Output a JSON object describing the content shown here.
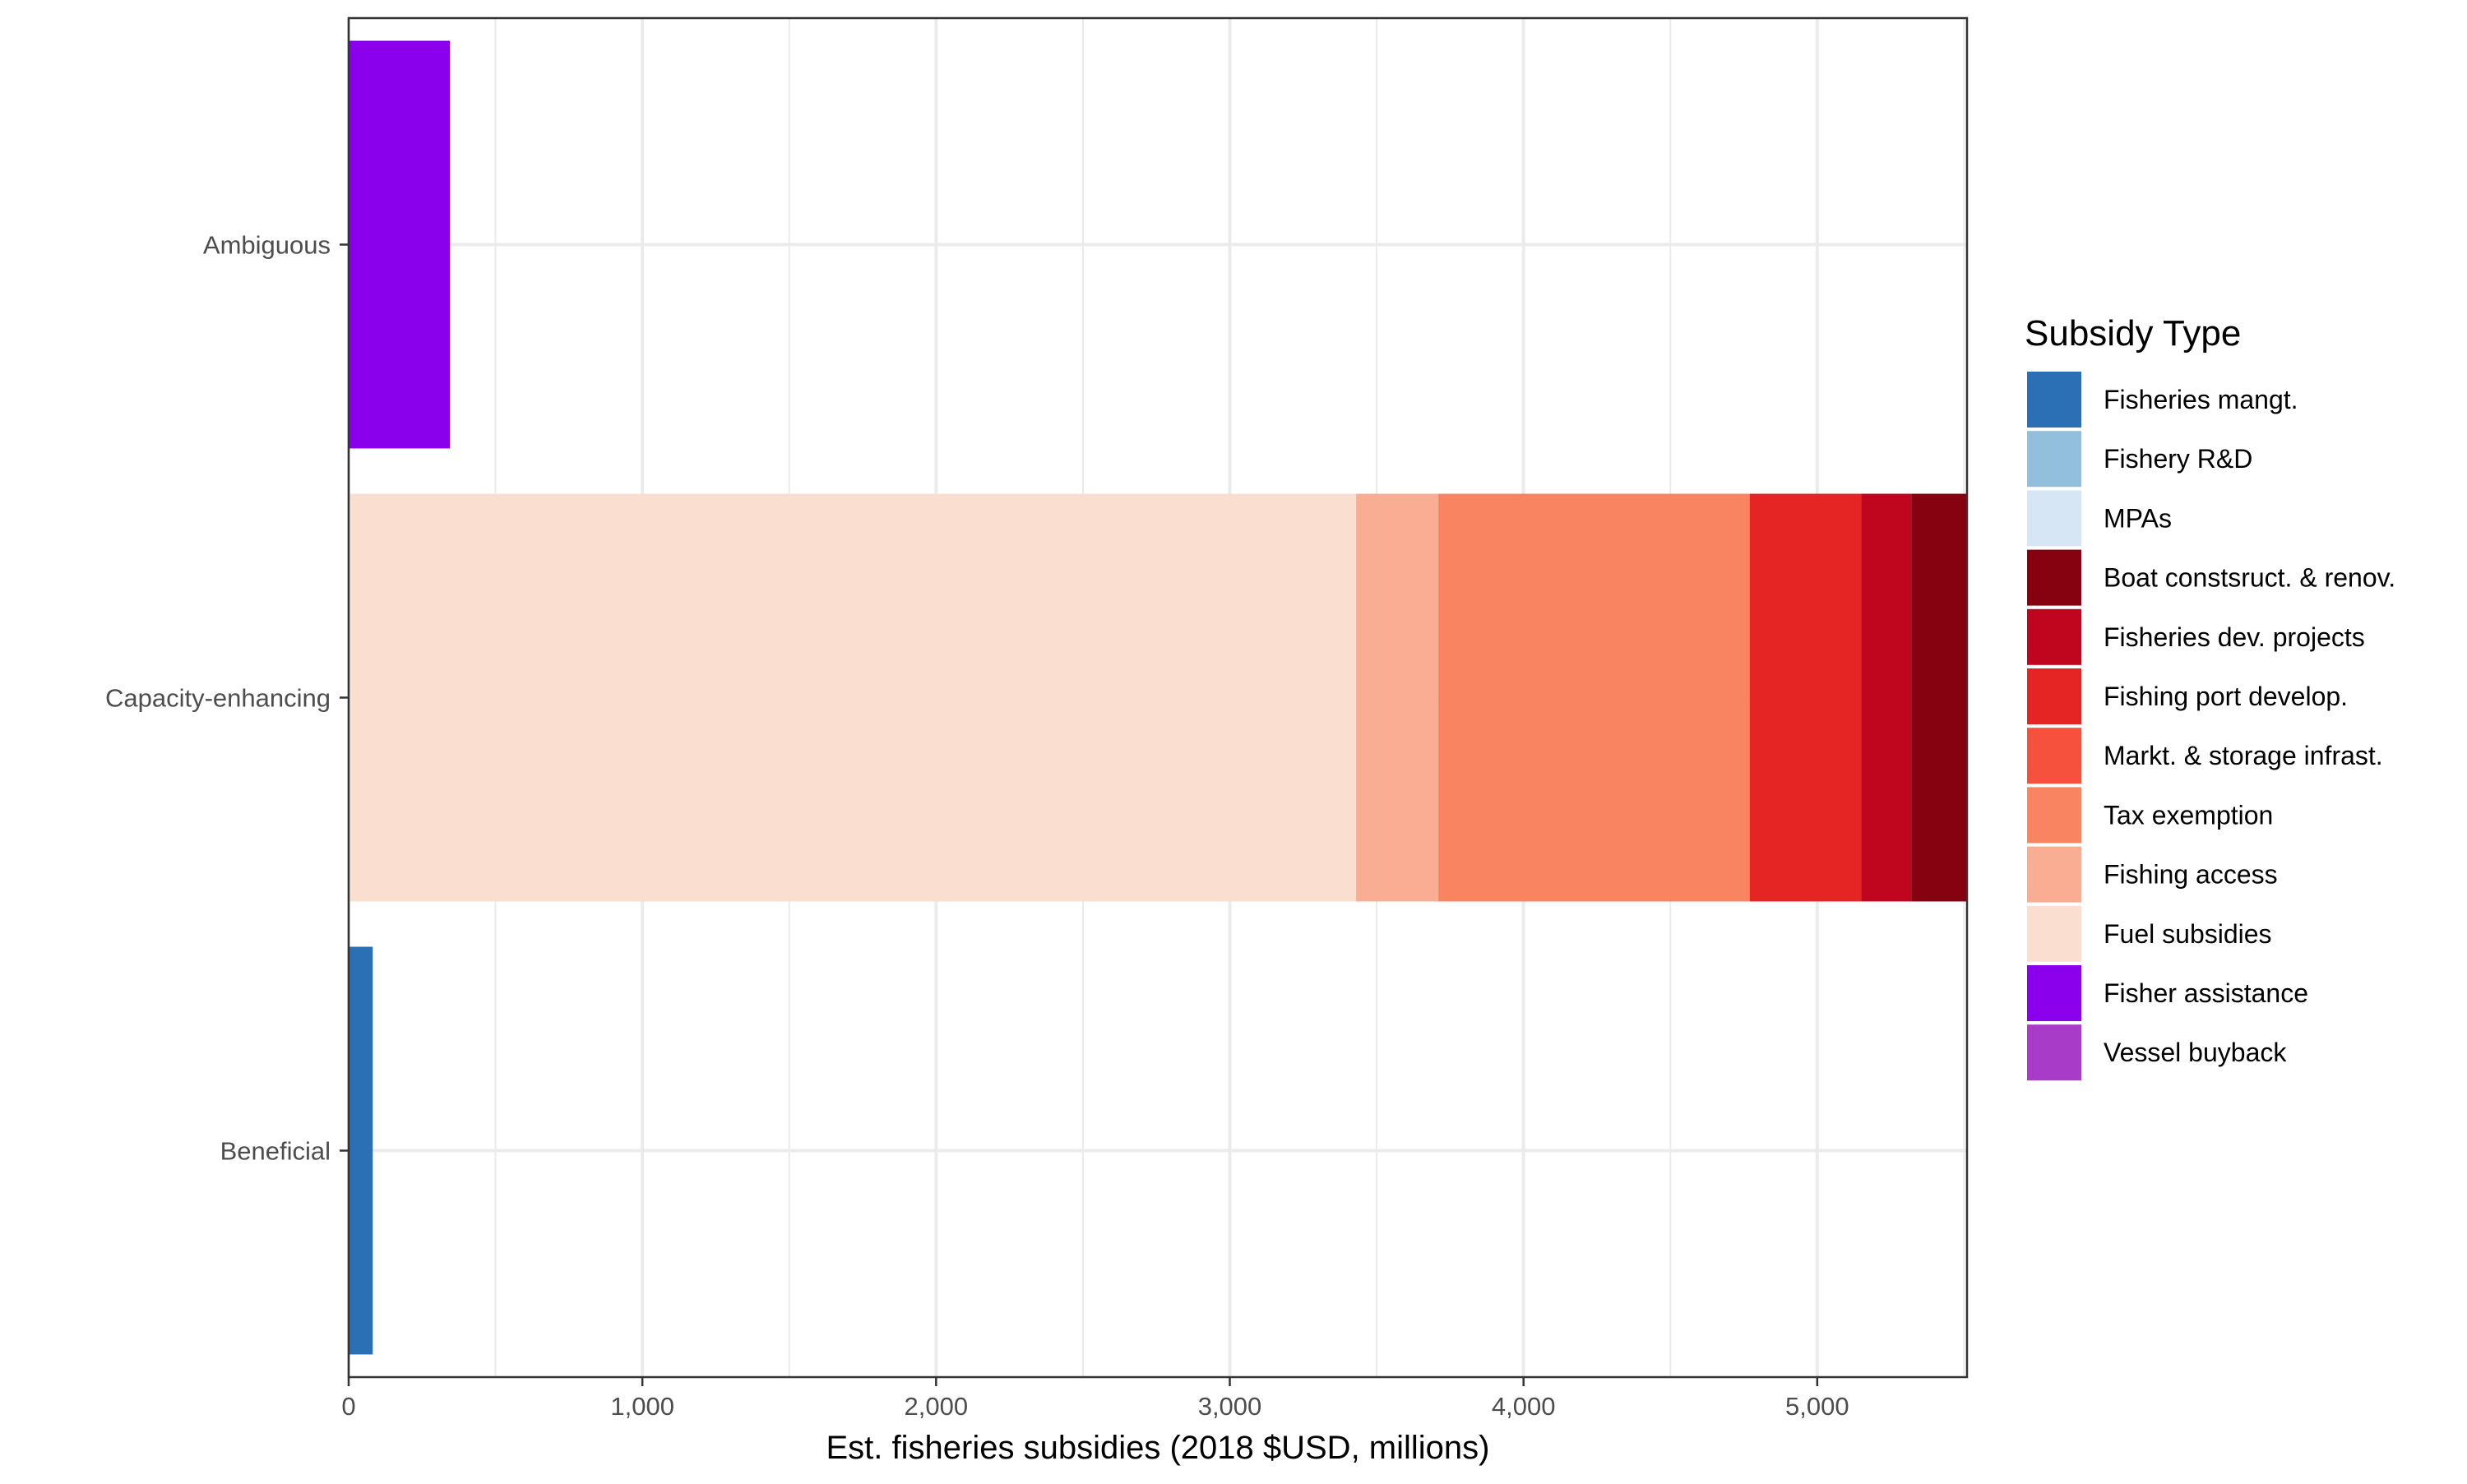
{
  "chart_data": {
    "type": "bar",
    "orientation": "horizontal",
    "stacked": true,
    "categories": [
      "Ambiguous",
      "Capacity-enhancing",
      "Beneficial"
    ],
    "xlabel": "Est. fisheries subsidies (2018 $USD, millions)",
    "ylabel": "",
    "xlim": [
      0,
      5510
    ],
    "xticks": [
      0,
      1000,
      2000,
      3000,
      4000,
      5000
    ],
    "xtick_labels": [
      "0",
      "1,000",
      "2,000",
      "3,000",
      "4,000",
      "5,000"
    ],
    "grid": true,
    "legend_title": "Subsidy Type",
    "legend_position": "right",
    "series": [
      {
        "name": "Fisheries mangt.",
        "color": "#2b6fb4",
        "values": [
          0,
          0,
          82
        ]
      },
      {
        "name": "Fishery R&D",
        "color": "#92bfdb",
        "values": [
          0,
          0,
          0
        ]
      },
      {
        "name": "MPAs",
        "color": "#d6e6f4",
        "values": [
          0,
          0,
          0
        ]
      },
      {
        "name": "Boat constsruct. & renov.",
        "color": "#860211",
        "values": [
          0,
          190,
          0
        ]
      },
      {
        "name": "Fisheries dev. projects",
        "color": "#c0051e",
        "values": [
          0,
          170,
          0
        ]
      },
      {
        "name": "Fishing port develop.",
        "color": "#e52524",
        "values": [
          0,
          380,
          0
        ]
      },
      {
        "name": "Markt. & storage infrast.",
        "color": "#f5513c",
        "values": [
          0,
          0,
          0
        ]
      },
      {
        "name": "Tax exemption",
        "color": "#f98462",
        "values": [
          0,
          1060,
          0
        ]
      },
      {
        "name": "Fishing access",
        "color": "#f9ad92",
        "values": [
          0,
          280,
          0
        ]
      },
      {
        "name": "Fuel subsidies",
        "color": "#fadfd1",
        "values": [
          0,
          3430,
          0
        ]
      },
      {
        "name": "Fisher assistance",
        "color": "#8b00ec",
        "values": [
          345,
          0,
          0
        ]
      },
      {
        "name": "Vessel buyback",
        "color": "#a93bc9",
        "values": [
          0,
          0,
          0
        ]
      }
    ],
    "stack_order": [
      "Fuel subsidies",
      "Fishing access",
      "Tax exemption",
      "Markt. & storage infrast.",
      "Fishing port develop.",
      "Fisheries dev. projects",
      "Boat constsruct. & renov.",
      "Fishery R&D",
      "MPAs",
      "Fisheries mangt.",
      "Fisher assistance",
      "Vessel buyback"
    ]
  }
}
